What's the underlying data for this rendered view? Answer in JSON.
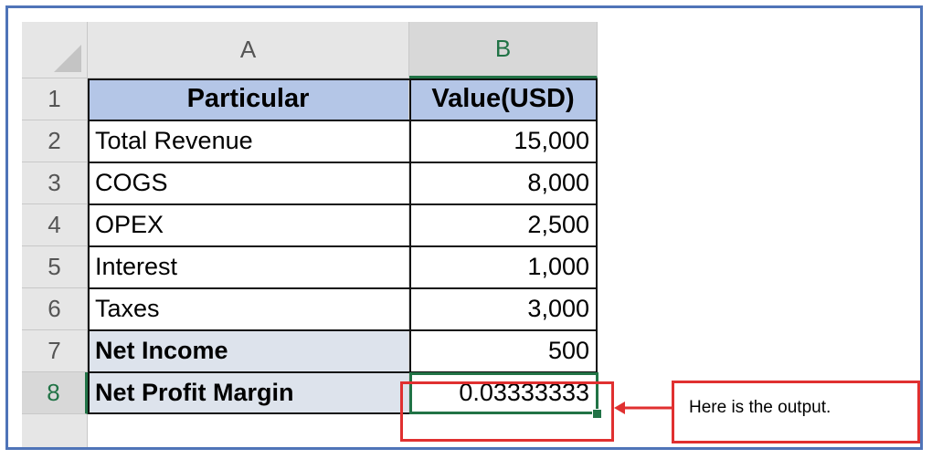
{
  "sheet": {
    "columns": [
      "A",
      "B"
    ],
    "selected_column": "B",
    "rows": [
      {
        "num": "1",
        "a": "Particular",
        "b": "Value(USD)",
        "style": "header"
      },
      {
        "num": "2",
        "a": "Total Revenue",
        "b": "15,000",
        "style": "plain"
      },
      {
        "num": "3",
        "a": "COGS",
        "b": "8,000",
        "style": "plain"
      },
      {
        "num": "4",
        "a": "OPEX",
        "b": "2,500",
        "style": "plain"
      },
      {
        "num": "5",
        "a": "Interest",
        "b": "1,000",
        "style": "plain"
      },
      {
        "num": "6",
        "a": "Taxes",
        "b": "3,000",
        "style": "plain"
      },
      {
        "num": "7",
        "a": "Net Income",
        "b": "500",
        "style": "shaded"
      },
      {
        "num": "8",
        "a": "Net Profit Margin",
        "b": "0.03333333",
        "style": "shaded",
        "selected": true
      }
    ]
  },
  "callout": {
    "text": "Here is the output."
  },
  "colors": {
    "accent_green": "#217346",
    "annotation_red": "#e03030",
    "frame_blue": "#4f74b8",
    "header_fill": "#b4c6e7"
  }
}
